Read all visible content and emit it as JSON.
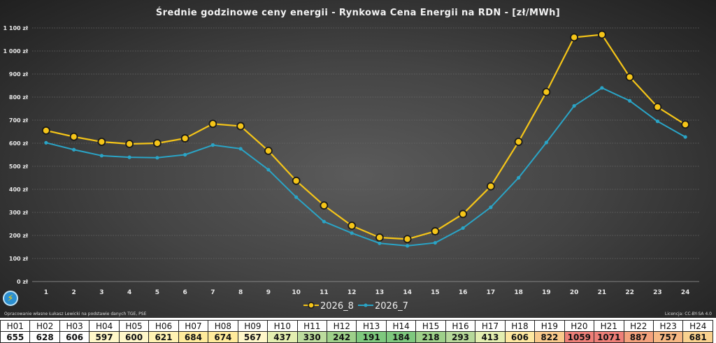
{
  "chart_data": {
    "type": "line",
    "title": "Średnie  godzinowe  ceny  energii  - Rynkowa  Cena  Energii  na  RDN  - [zł/MWh]",
    "x": [
      "1",
      "2",
      "3",
      "4",
      "5",
      "6",
      "7",
      "8",
      "9",
      "10",
      "11",
      "12",
      "13",
      "14",
      "15",
      "16",
      "17",
      "18",
      "19",
      "20",
      "21",
      "22",
      "23",
      "24"
    ],
    "series": [
      {
        "name": "2026_8",
        "color": "#f5c518",
        "values": [
          655,
          628,
          606,
          597,
          600,
          621,
          684,
          674,
          567,
          437,
          330,
          242,
          191,
          184,
          218,
          293,
          413,
          606,
          822,
          1059,
          1071,
          887,
          757,
          681
        ]
      },
      {
        "name": "2026_7",
        "color": "#2aa4c6",
        "values": [
          602,
          572,
          546,
          539,
          537,
          550,
          592,
          576,
          485,
          366,
          260,
          210,
          166,
          155,
          168,
          232,
          322,
          450,
          603,
          762,
          840,
          784,
          695,
          627
        ]
      }
    ],
    "ylim": [
      0,
      1100
    ],
    "yticks": [
      "0 zł",
      "100 zł",
      "200 zł",
      "300 zł",
      "400 zł",
      "500 zł",
      "600 zł",
      "700 zł",
      "800 zł",
      "900 zł",
      "1 000 zł",
      "1 100 zł"
    ],
    "grid": true,
    "legend_position": "bottom-center"
  },
  "footer": {
    "source_note": "Opracowanie własne Łukasz Lewicki na podstawie danych TGE, PSE",
    "license_note": "Licencja: CC-BY-SA 4.0"
  },
  "logo": {
    "icon": "lightning-bolt-icon",
    "glyph": "⚡"
  },
  "table": {
    "hours": [
      "H01",
      "H02",
      "H03",
      "H04",
      "H05",
      "H06",
      "H07",
      "H08",
      "H09",
      "H10",
      "H11",
      "H12",
      "H13",
      "H14",
      "H15",
      "H16",
      "H17",
      "H18",
      "H19",
      "H20",
      "H21",
      "H22",
      "H23",
      "H24"
    ],
    "values": [
      "655",
      "628",
      "606",
      "597",
      "600",
      "621",
      "684",
      "674",
      "567",
      "437",
      "330",
      "242",
      "191",
      "184",
      "218",
      "293",
      "413",
      "606",
      "822",
      "1059",
      "1071",
      "887",
      "757",
      "681"
    ],
    "colors": [
      "#ffffff",
      "#ffffff",
      "#ffffff",
      "#fff7c9",
      "#fff7c9",
      "#fff2b3",
      "#ffeb9c",
      "#ffeb9c",
      "#fff7c9",
      "#e3eeb0",
      "#bcdc9e",
      "#9ed08a",
      "#7ec87e",
      "#7ec87e",
      "#9ed08a",
      "#b6d89a",
      "#e3eeb0",
      "#fde7a0",
      "#f8c98c",
      "#ee7f78",
      "#ee7f78",
      "#f3a17c",
      "#f6b884",
      "#f9d28f"
    ]
  }
}
